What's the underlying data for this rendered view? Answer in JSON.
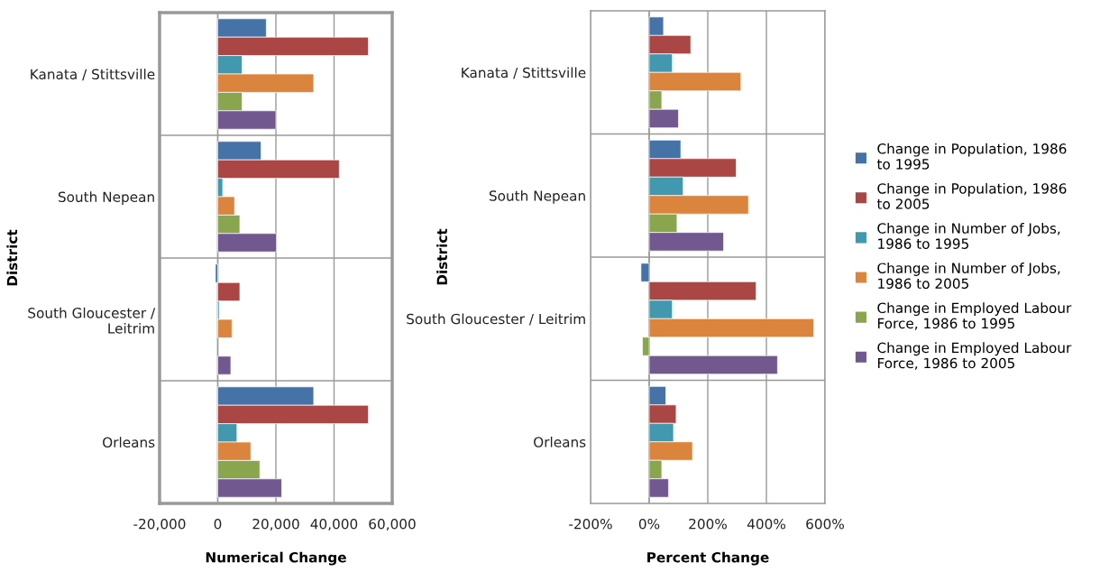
{
  "chart_data": [
    {
      "type": "bar",
      "orientation": "horizontal",
      "xlabel": "Numerical Change",
      "ylabel": "District",
      "categories": [
        "Kanata / Stittsville",
        "South Nepean",
        "South Gloucester / Leitrim",
        "Orleans"
      ],
      "series": [
        {
          "color": "#4572a7",
          "values": [
            16700,
            14900,
            -800,
            33000
          ]
        },
        {
          "color": "#aa4643",
          "values": [
            51800,
            41800,
            7600,
            51800
          ]
        },
        {
          "color": "#4198af",
          "values": [
            8400,
            1700,
            500,
            6600
          ]
        },
        {
          "color": "#db843d",
          "values": [
            33000,
            5800,
            4900,
            11400
          ]
        },
        {
          "color": "#89a54e",
          "values": [
            8400,
            7600,
            null,
            14500
          ]
        },
        {
          "color": "#71588f",
          "values": [
            20000,
            20200,
            4500,
            22000
          ]
        }
      ],
      "xlim": [
        -20000,
        60000
      ],
      "xticks": [
        {
          "value": -20000,
          "label": "-20,000"
        },
        0,
        {
          "value": 20000,
          "label": "20,000"
        },
        {
          "value": 40000,
          "label": "40,000"
        },
        {
          "value": 60000,
          "label": "60,000"
        }
      ],
      "grid": true,
      "legend": false
    },
    {
      "type": "bar",
      "orientation": "horizontal",
      "xlabel": "Percent Change",
      "ylabel": "District",
      "categories": [
        "Kanata / Stittsville",
        "South Nepean",
        "South Gloucester / Leitrim",
        "Orleans"
      ],
      "series": [
        {
          "name": "Change in Population, 1986 to 1995",
          "color": "#4572a7",
          "values": [
            49,
            108,
            -28,
            57
          ]
        },
        {
          "name": "Change in Population, 1986 to 2005",
          "color": "#aa4643",
          "values": [
            142,
            297,
            365,
            92
          ]
        },
        {
          "name": "Change in Number of Jobs, 1986 to 1995",
          "color": "#4198af",
          "values": [
            79,
            116,
            79,
            83
          ]
        },
        {
          "name": "Change in Number of Jobs, 1986 to 2005",
          "color": "#db843d",
          "values": [
            313,
            339,
            562,
            148
          ]
        },
        {
          "name": "Change in Employed Labour Force, 1986 to 1995",
          "color": "#89a54e",
          "values": [
            43,
            95,
            -23,
            43
          ]
        },
        {
          "name": "Change in Employed Labour Force, 1986 to 2005",
          "color": "#71588f",
          "values": [
            100,
            254,
            438,
            66
          ]
        }
      ],
      "xlim": [
        -200,
        600
      ],
      "xticks": [
        {
          "value": -200,
          "label": "-200%"
        },
        {
          "value": 0,
          "label": "0%"
        },
        {
          "value": 200,
          "label": "200%"
        },
        {
          "value": 400,
          "label": "400%"
        },
        {
          "value": 600,
          "label": "600%"
        }
      ],
      "grid": true,
      "legend": "right"
    }
  ]
}
